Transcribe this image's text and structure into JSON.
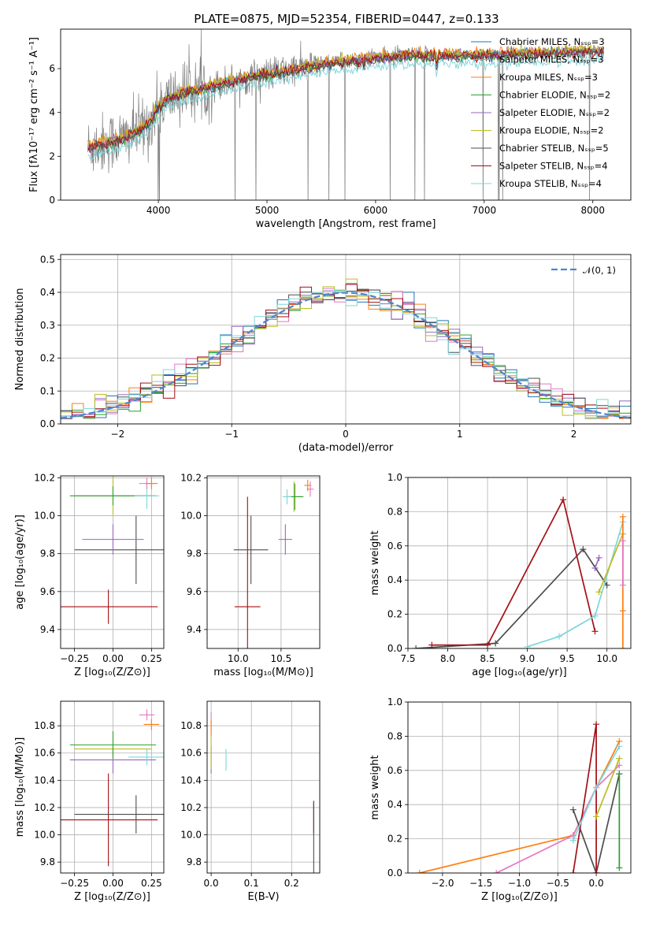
{
  "title": "PLATE=0875, MJD=52354, FIBERID=0447, z=0.133",
  "colors": {
    "chabrier_miles": "#1f77b4",
    "salpeter_miles": "#e377c2",
    "kroupa_miles": "#ff7f0e",
    "chabrier_elodie": "#2ca02c",
    "salpeter_elodie": "#9467bd",
    "kroupa_elodie": "#bcbd22",
    "chabrier_stelib": "#4d4d4d",
    "salpeter_stelib": "#a50f15",
    "kroupa_stelib": "#7fd6da",
    "data": "#808080",
    "gaussian": "#4f86cf",
    "grid": "#b0b0b0"
  },
  "chart_data": [
    {
      "id": "spectrum",
      "type": "line",
      "xlabel": "wavelength [Angstrom, rest frame]",
      "ylabel": "Flux [fλ10⁻¹⁷ erg cm⁻² s⁻¹ A⁻¹]",
      "xlim": [
        3100,
        8350
      ],
      "ylim": [
        0,
        7.8
      ],
      "xticks": [
        4000,
        5000,
        6000,
        7000,
        8000
      ],
      "yticks": [
        0,
        2,
        4,
        6
      ],
      "grid": false,
      "legend_position": "top-right",
      "continuum": {
        "x": [
          3350,
          3500,
          3700,
          3900,
          4000,
          4100,
          4300,
          4500,
          4700,
          5000,
          5300,
          5500,
          5800,
          6000,
          6300,
          6600,
          6900,
          7200,
          7500,
          7800,
          8100
        ],
        "y": [
          2.4,
          2.6,
          2.85,
          3.4,
          4.2,
          4.7,
          5.0,
          5.2,
          5.45,
          5.75,
          6.0,
          6.2,
          6.35,
          6.5,
          6.6,
          6.6,
          6.6,
          6.65,
          6.7,
          6.75,
          6.8
        ]
      },
      "series": [
        {
          "name": "Chabrier MILES, Nₛₛₚ=3",
          "color_key": "chabrier_miles",
          "offset": 0.05
        },
        {
          "name": "Salpeter MILES, Nₛₛₚ=3",
          "color_key": "salpeter_miles",
          "offset": 0.0
        },
        {
          "name": "Kroupa MILES, Nₛₛₚ=3",
          "color_key": "kroupa_miles",
          "offset": 0.1
        },
        {
          "name": "Chabrier ELODIE, Nₛₛₚ=2",
          "color_key": "chabrier_elodie",
          "offset": -0.05
        },
        {
          "name": "Salpeter ELODIE, Nₛₛₚ=2",
          "color_key": "salpeter_elodie",
          "offset": 0.0
        },
        {
          "name": "Kroupa ELODIE, Nₛₛₚ=2",
          "color_key": "kroupa_elodie",
          "offset": 0.08
        },
        {
          "name": "Chabrier STELIB, Nₛₛₚ=5",
          "color_key": "chabrier_stelib",
          "offset": -0.1
        },
        {
          "name": "Salpeter STELIB, Nₛₛₚ=4",
          "color_key": "salpeter_stelib",
          "offset": 0.0
        },
        {
          "name": "Kroupa STELIB, Nₛₛₚ=4",
          "color_key": "kroupa_stelib",
          "offset": -0.4
        }
      ]
    },
    {
      "id": "residuals",
      "type": "line",
      "xlabel": "(data-model)/error",
      "ylabel": "Normed distribution",
      "xlim": [
        -2.5,
        2.5
      ],
      "ylim": [
        0,
        0.515
      ],
      "xticks": [
        -2,
        -1,
        0,
        1,
        2
      ],
      "yticks": [
        0.0,
        0.1,
        0.2,
        0.3,
        0.4,
        0.5
      ],
      "grid": true,
      "legend_position": "top-right",
      "legend_label": "𝒩(0, 1)",
      "bins": {
        "start": -2.5,
        "width": 0.1,
        "count": 50
      }
    },
    {
      "id": "age_vs_Z",
      "type": "scatter",
      "xlabel": "Z [log₁₀(Z/Z⊙)]",
      "ylabel": "age  [log₁₀(age/yr)]",
      "xlim": [
        -0.34,
        0.33
      ],
      "ylim": [
        9.3,
        10.21
      ],
      "xticks": [
        -0.25,
        0.0,
        0.25
      ],
      "yticks": [
        9.4,
        9.6,
        9.8,
        10.0,
        10.2
      ],
      "grid": true,
      "points": [
        {
          "color_key": "salpeter_stelib",
          "x": -0.03,
          "xerr": 0.32,
          "y": 9.52,
          "yerr": 0.09
        },
        {
          "color_key": "chabrier_stelib",
          "x": 0.15,
          "xerr": 0.4,
          "y": 9.82,
          "yerr": 0.18
        },
        {
          "color_key": "salpeter_elodie",
          "x": 0.0,
          "xerr": 0.2,
          "y": 9.875,
          "yerr": 0.08
        },
        {
          "color_key": "kroupa_elodie",
          "x": 0.0,
          "xerr": 0.25,
          "y": 10.105,
          "yerr": 0.1
        },
        {
          "color_key": "chabrier_elodie",
          "x": 0.0,
          "xerr": 0.28,
          "y": 10.105,
          "yerr": 0.05
        },
        {
          "color_key": "kroupa_stelib",
          "x": 0.22,
          "xerr": 0.08,
          "y": 10.105,
          "yerr": 0.07
        },
        {
          "color_key": "salpeter_miles",
          "x": 0.22,
          "xerr": 0.05,
          "y": 10.17,
          "yerr": 0.03
        },
        {
          "color_key": "kroupa_miles",
          "x": 0.25,
          "xerr": 0.04,
          "y": 10.17,
          "yerr": 0.03
        }
      ]
    },
    {
      "id": "age_vs_mass",
      "type": "scatter",
      "xlabel": "mass [log₁₀(M/M⊙)]",
      "ylabel": "",
      "xlim": [
        9.64,
        10.95
      ],
      "ylim": [
        9.3,
        10.21
      ],
      "xticks": [
        10.0,
        10.5
      ],
      "yticks": [
        9.4,
        9.6,
        9.8,
        10.0,
        10.2
      ],
      "grid": true,
      "points": [
        {
          "color_key": "salpeter_stelib",
          "x": 10.11,
          "xerr": 0.15,
          "y": 9.52,
          "yerr": 0.58
        },
        {
          "color_key": "chabrier_stelib",
          "x": 10.15,
          "xerr": 0.2,
          "y": 9.82,
          "yerr": 0.18
        },
        {
          "color_key": "salpeter_elodie",
          "x": 10.55,
          "xerr": 0.08,
          "y": 9.875,
          "yerr": 0.08
        },
        {
          "color_key": "kroupa_elodie",
          "x": 10.65,
          "xerr": 0.1,
          "y": 10.1,
          "yerr": 0.08
        },
        {
          "color_key": "chabrier_elodie",
          "x": 10.66,
          "xerr": 0.1,
          "y": 10.1,
          "yerr": 0.07
        },
        {
          "color_key": "kroupa_stelib",
          "x": 10.57,
          "xerr": 0.05,
          "y": 10.1,
          "yerr": 0.04
        },
        {
          "color_key": "salpeter_miles",
          "x": 10.84,
          "xerr": 0.04,
          "y": 10.14,
          "yerr": 0.04
        },
        {
          "color_key": "kroupa_miles",
          "x": 10.81,
          "xerr": 0.04,
          "y": 10.16,
          "yerr": 0.03
        }
      ]
    },
    {
      "id": "massweight_vs_age",
      "type": "line",
      "xlabel": "age  [log₁₀(age/yr)]",
      "ylabel": "mass weight",
      "xlim": [
        7.5,
        10.3
      ],
      "ylim": [
        0,
        1
      ],
      "xticks": [
        7.5,
        8.0,
        8.5,
        9.0,
        9.5,
        10.0
      ],
      "yticks": [
        0.0,
        0.2,
        0.4,
        0.6,
        0.8,
        1.0
      ],
      "grid": true,
      "series": [
        {
          "color_key": "chabrier_stelib",
          "x": [
            7.6,
            8.6,
            9.7,
            10.0
          ],
          "y": [
            0.0,
            0.03,
            0.58,
            0.37
          ]
        },
        {
          "color_key": "salpeter_stelib",
          "x": [
            7.8,
            8.5,
            9.45,
            9.85
          ],
          "y": [
            0.02,
            0.02,
            0.87,
            0.1
          ]
        },
        {
          "color_key": "kroupa_stelib",
          "x": [
            9.0,
            9.4,
            9.85,
            10.2
          ],
          "y": [
            0.01,
            0.07,
            0.19,
            0.74
          ]
        },
        {
          "color_key": "salpeter_elodie",
          "x": [
            9.85,
            9.9
          ],
          "y": [
            0.47,
            0.53
          ]
        },
        {
          "color_key": "kroupa_elodie",
          "x": [
            9.9,
            10.2
          ],
          "y": [
            0.33,
            0.67
          ]
        },
        {
          "color_key": "kroupa_miles",
          "x": [
            10.2,
            10.2,
            10.2
          ],
          "y": [
            0.0,
            0.22,
            0.77
          ]
        },
        {
          "color_key": "salpeter_miles",
          "x": [
            10.2,
            10.2
          ],
          "y": [
            0.37,
            0.63
          ]
        }
      ]
    },
    {
      "id": "mass_vs_Z",
      "type": "scatter",
      "xlabel": "Z [log₁₀(Z/Z⊙)]",
      "ylabel": "mass [log₁₀(M/M⊙)]",
      "xlim": [
        -0.34,
        0.33
      ],
      "ylim": [
        9.72,
        10.98
      ],
      "xticks": [
        -0.25,
        0.0,
        0.25
      ],
      "yticks": [
        9.8,
        10.0,
        10.2,
        10.4,
        10.6,
        10.8
      ],
      "grid": true,
      "points": [
        {
          "color_key": "salpeter_stelib",
          "x": -0.03,
          "xerr": 0.32,
          "y": 10.11,
          "yerr": 0.34
        },
        {
          "color_key": "chabrier_stelib",
          "x": 0.15,
          "xerr": 0.4,
          "y": 10.15,
          "yerr": 0.14
        },
        {
          "color_key": "salpeter_elodie",
          "x": 0.0,
          "xerr": 0.28,
          "y": 10.55,
          "yerr": 0.1
        },
        {
          "color_key": "kroupa_elodie",
          "x": 0.0,
          "xerr": 0.25,
          "y": 10.63,
          "yerr": 0.06
        },
        {
          "color_key": "chabrier_elodie",
          "x": 0.0,
          "xerr": 0.28,
          "y": 10.66,
          "yerr": 0.1
        },
        {
          "color_key": "kroupa_stelib",
          "x": 0.22,
          "xerr": 0.12,
          "y": 10.57,
          "yerr": 0.06
        },
        {
          "color_key": "salpeter_miles",
          "x": 0.22,
          "xerr": 0.05,
          "y": 10.88,
          "yerr": 0.04
        },
        {
          "color_key": "kroupa_miles",
          "x": 0.25,
          "xerr": 0.05,
          "y": 10.81,
          "yerr": 0.04
        }
      ]
    },
    {
      "id": "mass_vs_ebv",
      "type": "scatter",
      "xlabel": "E(B-V)",
      "ylabel": "",
      "xlim": [
        -0.01,
        0.27
      ],
      "ylim": [
        9.72,
        10.98
      ],
      "xticks": [
        0.0,
        0.1,
        0.2
      ],
      "yticks": [
        9.8,
        10.0,
        10.2,
        10.4,
        10.6,
        10.8
      ],
      "grid": true,
      "points": [
        {
          "color_key": "salpeter_miles",
          "x": 0.0,
          "xerr": 0.0,
          "y": 10.82,
          "yerr": 0.08
        },
        {
          "color_key": "kroupa_miles",
          "x": 0.0,
          "xerr": 0.0,
          "y": 10.78,
          "yerr": 0.06
        },
        {
          "color_key": "salpeter_elodie",
          "x": 0.0,
          "xerr": 0.0,
          "y": 10.55,
          "yerr": 0.1
        },
        {
          "color_key": "kroupa_elodie",
          "x": 0.0,
          "xerr": 0.0,
          "y": 10.6,
          "yerr": 0.12
        },
        {
          "color_key": "kroupa_stelib",
          "x": 0.037,
          "xerr": 0.0,
          "y": 10.55,
          "yerr": 0.08
        },
        {
          "color_key": "salpeter_stelib",
          "x": 0.255,
          "xerr": 0.0,
          "y": 10.13,
          "yerr": 0.12
        },
        {
          "color_key": "chabrier_stelib",
          "x": 0.255,
          "xerr": 0.0,
          "y": 9.98,
          "yerr": 0.26
        }
      ]
    },
    {
      "id": "massweight_vs_Z",
      "type": "line",
      "xlabel": "Z [log₁₀(Z/Z⊙)]",
      "ylabel": "mass weight",
      "xlim": [
        -2.45,
        0.45
      ],
      "ylim": [
        0,
        1
      ],
      "xticks": [
        -2.0,
        -1.5,
        -1.0,
        -0.5,
        0.0
      ],
      "yticks": [
        0.0,
        0.2,
        0.4,
        0.6,
        0.8,
        1.0
      ],
      "grid": true,
      "series": [
        {
          "color_key": "kroupa_miles",
          "x": [
            -2.3,
            -0.3,
            0.0,
            0.3
          ],
          "y": [
            0.0,
            0.22,
            0.5,
            0.77
          ]
        },
        {
          "color_key": "salpeter_miles",
          "x": [
            -1.3,
            -0.3,
            0.0,
            0.3
          ],
          "y": [
            0.0,
            0.22,
            0.5,
            0.63
          ]
        },
        {
          "color_key": "chabrier_stelib",
          "x": [
            -0.3,
            0.0,
            0.3
          ],
          "y": [
            0.37,
            0.0,
            0.58
          ]
        },
        {
          "color_key": "salpeter_stelib",
          "x": [
            -0.3,
            0.0,
            0.0
          ],
          "y": [
            0.0,
            0.87,
            0.0
          ]
        },
        {
          "color_key": "kroupa_stelib",
          "x": [
            -0.3,
            0.0,
            0.3
          ],
          "y": [
            0.19,
            0.5,
            0.74
          ]
        },
        {
          "color_key": "kroupa_elodie",
          "x": [
            0.0,
            0.3
          ],
          "y": [
            0.33,
            0.67
          ]
        },
        {
          "color_key": "chabrier_elodie",
          "x": [
            0.3,
            0.3
          ],
          "y": [
            0.03,
            0.58
          ]
        }
      ]
    }
  ]
}
